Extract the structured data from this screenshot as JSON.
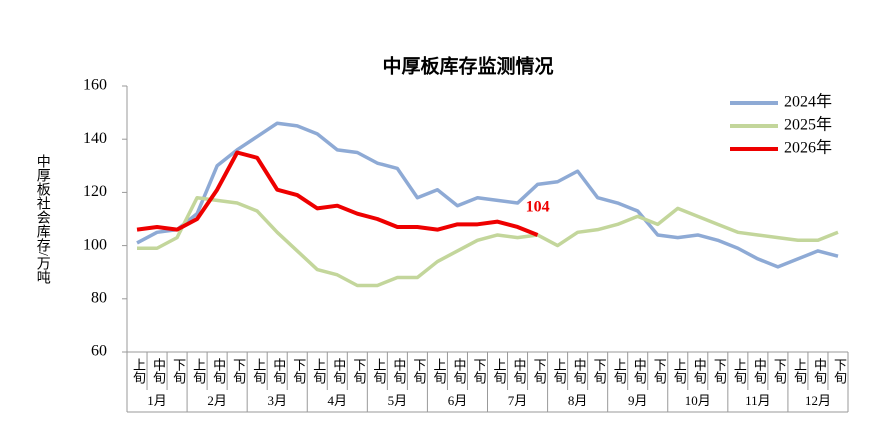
{
  "chart_data": {
    "type": "line",
    "title": "中厚板库存监测情况",
    "y_label": "中厚板社会库存/万吨",
    "categories": [
      "上旬",
      "中旬",
      "下旬",
      "上旬",
      "中旬",
      "下旬",
      "上旬",
      "中旬",
      "下旬",
      "上旬",
      "中旬",
      "下旬",
      "上旬",
      "中旬",
      "下旬",
      "上旬",
      "中旬",
      "下旬",
      "上旬",
      "中旬",
      "下旬",
      "上旬",
      "中旬",
      "下旬",
      "上旬",
      "中旬",
      "下旬",
      "上旬",
      "中旬",
      "下旬",
      "上旬",
      "中旬",
      "下旬",
      "上旬",
      "中旬",
      "下旬"
    ],
    "months": [
      "1月",
      "2月",
      "3月",
      "4月",
      "5月",
      "6月",
      "7月",
      "8月",
      "9月",
      "10月",
      "11月",
      "12月"
    ],
    "series": [
      {
        "name": "2024年",
        "color": "#8eaad5",
        "values": [
          101,
          105,
          106,
          112,
          130,
          136,
          141,
          146,
          145,
          142,
          136,
          135,
          131,
          129,
          118,
          121,
          115,
          118,
          117,
          116,
          123,
          124,
          128,
          118,
          116,
          113,
          104,
          103,
          104,
          102,
          99,
          95,
          92,
          95,
          98,
          96
        ]
      },
      {
        "name": "2025年",
        "color": "#c3d69b",
        "values": [
          99,
          99,
          103,
          118,
          117,
          116,
          113,
          105,
          98,
          91,
          89,
          85,
          85,
          88,
          88,
          94,
          98,
          102,
          104,
          103,
          104,
          100,
          105,
          106,
          108,
          111,
          108,
          114,
          111,
          108,
          105,
          104,
          103,
          102,
          102,
          105
        ]
      },
      {
        "name": "2026年",
        "color": "#ee0000",
        "values": [
          106,
          107,
          106,
          110,
          121,
          135,
          133,
          121,
          119,
          114,
          115,
          112,
          110,
          107,
          107,
          106,
          108,
          108,
          109,
          107,
          104,
          null,
          null,
          null,
          null,
          null,
          null,
          null,
          null,
          null,
          null,
          null,
          null,
          null,
          null,
          null
        ]
      }
    ],
    "ylim": [
      60,
      160
    ],
    "yticks": [
      60,
      80,
      100,
      120,
      140,
      160
    ],
    "grid": false,
    "legend": "upper right"
  }
}
